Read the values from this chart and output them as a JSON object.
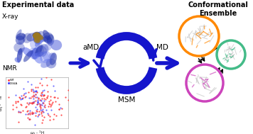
{
  "title_left": "Experimental data",
  "label_xray": "X-ray",
  "label_nmr": "NMR",
  "label_amd": "aMD",
  "label_md": "MD",
  "label_msm": "MSM",
  "title_right": "Conformational\nEnsemble",
  "legend_wt": "WT",
  "legend_d66a": "D66A",
  "circle_orange": "#FF8800",
  "circle_purple": "#CC44BB",
  "circle_green": "#44BB88",
  "arrow_color": "#1515CC",
  "background": "#FFFFFF",
  "nmr_dot_wt": "#FF3333",
  "nmr_dot_d66a": "#3333FF",
  "xray_blue": "#4455CC",
  "xray_gold": "#9B7820",
  "fig_w": 3.56,
  "fig_h": 1.89,
  "dpi": 100
}
